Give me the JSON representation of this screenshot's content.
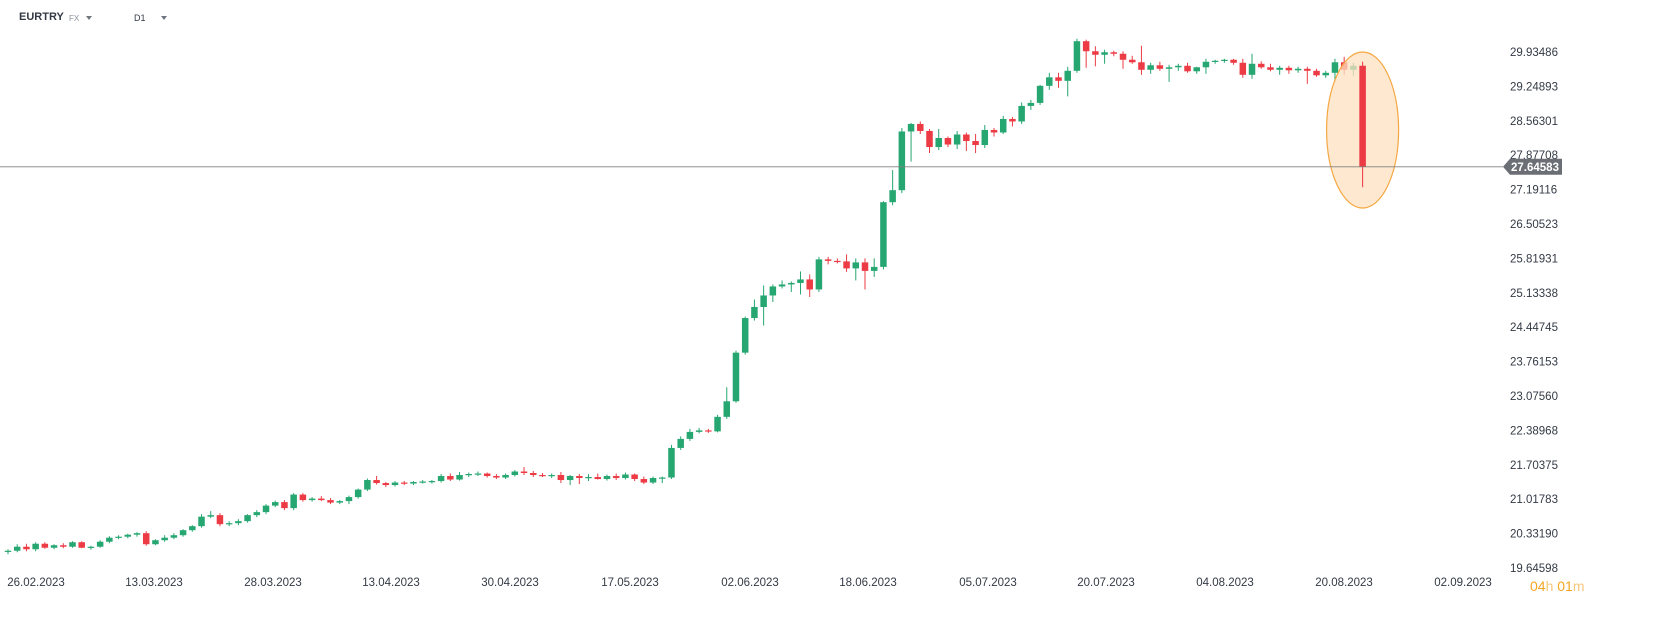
{
  "header": {
    "symbol": "EURTRY",
    "market": "FX",
    "interval": "D1"
  },
  "timer": {
    "hours": "04",
    "hours_unit": "h",
    "minutes": "01",
    "minutes_unit": "m"
  },
  "colors": {
    "up": "#26a671",
    "down": "#ec3b45",
    "line": "#808080",
    "price_tag_bg": "#6b6f75",
    "highlight_fill": "#fde2c0",
    "highlight_stroke": "#f5a742"
  },
  "chart_data": {
    "type": "candlestick",
    "symbol": "EURTRY",
    "timeframe": "D1",
    "ylim": [
      19.64598,
      30.6
    ],
    "y_ticks": [
      "29.93486",
      "29.24893",
      "28.56301",
      "27.87708",
      "27.19116",
      "26.50523",
      "25.81931",
      "25.13338",
      "24.44745",
      "23.76153",
      "23.07560",
      "22.38968",
      "21.70375",
      "21.01783",
      "20.33190",
      "19.64598"
    ],
    "x_ticks": [
      "26.02.2023",
      "13.03.2023",
      "28.03.2023",
      "13.04.2023",
      "30.04.2023",
      "17.05.2023",
      "02.06.2023",
      "18.06.2023",
      "05.07.2023",
      "20.07.2023",
      "04.08.2023",
      "20.08.2023",
      "02.09.2023"
    ],
    "current_price": "27.64583",
    "current_price_value": 27.64583,
    "candles": [
      {
        "o": 19.98,
        "h": 20.02,
        "l": 19.92,
        "c": 19.99
      },
      {
        "o": 19.99,
        "h": 20.12,
        "l": 19.96,
        "c": 20.07
      },
      {
        "o": 20.07,
        "h": 20.13,
        "l": 19.98,
        "c": 20.02
      },
      {
        "o": 20.02,
        "h": 20.16,
        "l": 19.98,
        "c": 20.13
      },
      {
        "o": 20.13,
        "h": 20.16,
        "l": 20.03,
        "c": 20.05
      },
      {
        "o": 20.05,
        "h": 20.12,
        "l": 20.02,
        "c": 20.1
      },
      {
        "o": 20.1,
        "h": 20.14,
        "l": 20.04,
        "c": 20.07
      },
      {
        "o": 20.07,
        "h": 20.18,
        "l": 20.05,
        "c": 20.16
      },
      {
        "o": 20.16,
        "h": 20.18,
        "l": 20.04,
        "c": 20.05
      },
      {
        "o": 20.05,
        "h": 20.09,
        "l": 20.01,
        "c": 20.07
      },
      {
        "o": 20.07,
        "h": 20.2,
        "l": 20.05,
        "c": 20.17
      },
      {
        "o": 20.17,
        "h": 20.28,
        "l": 20.14,
        "c": 20.25
      },
      {
        "o": 20.25,
        "h": 20.3,
        "l": 20.22,
        "c": 20.27
      },
      {
        "o": 20.27,
        "h": 20.33,
        "l": 20.24,
        "c": 20.31
      },
      {
        "o": 20.31,
        "h": 20.36,
        "l": 20.27,
        "c": 20.34
      },
      {
        "o": 20.34,
        "h": 20.38,
        "l": 20.09,
        "c": 20.12
      },
      {
        "o": 20.12,
        "h": 20.22,
        "l": 20.1,
        "c": 20.2
      },
      {
        "o": 20.2,
        "h": 20.3,
        "l": 20.17,
        "c": 20.25
      },
      {
        "o": 20.25,
        "h": 20.34,
        "l": 20.22,
        "c": 20.3
      },
      {
        "o": 20.3,
        "h": 20.42,
        "l": 20.27,
        "c": 20.4
      },
      {
        "o": 20.4,
        "h": 20.5,
        "l": 20.37,
        "c": 20.48
      },
      {
        "o": 20.48,
        "h": 20.72,
        "l": 20.45,
        "c": 20.67
      },
      {
        "o": 20.67,
        "h": 20.78,
        "l": 20.64,
        "c": 20.7
      },
      {
        "o": 20.7,
        "h": 20.74,
        "l": 20.48,
        "c": 20.52
      },
      {
        "o": 20.52,
        "h": 20.58,
        "l": 20.48,
        "c": 20.54
      },
      {
        "o": 20.54,
        "h": 20.62,
        "l": 20.5,
        "c": 20.58
      },
      {
        "o": 20.58,
        "h": 20.72,
        "l": 20.55,
        "c": 20.7
      },
      {
        "o": 20.7,
        "h": 20.8,
        "l": 20.66,
        "c": 20.76
      },
      {
        "o": 20.76,
        "h": 20.92,
        "l": 20.72,
        "c": 20.89
      },
      {
        "o": 20.89,
        "h": 20.99,
        "l": 20.86,
        "c": 20.96
      },
      {
        "o": 20.96,
        "h": 21.0,
        "l": 20.8,
        "c": 20.84
      },
      {
        "o": 20.84,
        "h": 21.14,
        "l": 20.8,
        "c": 21.11
      },
      {
        "o": 21.11,
        "h": 21.14,
        "l": 20.97,
        "c": 21.0
      },
      {
        "o": 21.0,
        "h": 21.06,
        "l": 20.97,
        "c": 21.03
      },
      {
        "o": 21.03,
        "h": 21.08,
        "l": 20.98,
        "c": 21.0
      },
      {
        "o": 21.0,
        "h": 21.04,
        "l": 20.92,
        "c": 20.95
      },
      {
        "o": 20.95,
        "h": 21.0,
        "l": 20.92,
        "c": 20.98
      },
      {
        "o": 20.98,
        "h": 21.09,
        "l": 20.92,
        "c": 21.06
      },
      {
        "o": 21.06,
        "h": 21.23,
        "l": 21.03,
        "c": 21.21
      },
      {
        "o": 21.21,
        "h": 21.43,
        "l": 21.18,
        "c": 21.4
      },
      {
        "o": 21.4,
        "h": 21.48,
        "l": 21.31,
        "c": 21.34
      },
      {
        "o": 21.34,
        "h": 21.36,
        "l": 21.26,
        "c": 21.3
      },
      {
        "o": 21.3,
        "h": 21.38,
        "l": 21.27,
        "c": 21.35
      },
      {
        "o": 21.35,
        "h": 21.38,
        "l": 21.3,
        "c": 21.33
      },
      {
        "o": 21.33,
        "h": 21.38,
        "l": 21.3,
        "c": 21.36
      },
      {
        "o": 21.36,
        "h": 21.4,
        "l": 21.33,
        "c": 21.37
      },
      {
        "o": 21.37,
        "h": 21.4,
        "l": 21.33,
        "c": 21.38
      },
      {
        "o": 21.38,
        "h": 21.52,
        "l": 21.35,
        "c": 21.48
      },
      {
        "o": 21.48,
        "h": 21.53,
        "l": 21.38,
        "c": 21.41
      },
      {
        "o": 21.41,
        "h": 21.56,
        "l": 21.39,
        "c": 21.5
      },
      {
        "o": 21.5,
        "h": 21.55,
        "l": 21.46,
        "c": 21.52
      },
      {
        "o": 21.52,
        "h": 21.57,
        "l": 21.48,
        "c": 21.53
      },
      {
        "o": 21.53,
        "h": 21.55,
        "l": 21.45,
        "c": 21.48
      },
      {
        "o": 21.48,
        "h": 21.52,
        "l": 21.42,
        "c": 21.45
      },
      {
        "o": 21.45,
        "h": 21.53,
        "l": 21.42,
        "c": 21.5
      },
      {
        "o": 21.5,
        "h": 21.6,
        "l": 21.47,
        "c": 21.57
      },
      {
        "o": 21.57,
        "h": 21.66,
        "l": 21.5,
        "c": 21.54
      },
      {
        "o": 21.54,
        "h": 21.58,
        "l": 21.46,
        "c": 21.5
      },
      {
        "o": 21.5,
        "h": 21.54,
        "l": 21.46,
        "c": 21.48
      },
      {
        "o": 21.48,
        "h": 21.53,
        "l": 21.44,
        "c": 21.5
      },
      {
        "o": 21.5,
        "h": 21.56,
        "l": 21.34,
        "c": 21.4
      },
      {
        "o": 21.4,
        "h": 21.5,
        "l": 21.3,
        "c": 21.48
      },
      {
        "o": 21.48,
        "h": 21.52,
        "l": 21.32,
        "c": 21.44
      },
      {
        "o": 21.44,
        "h": 21.52,
        "l": 21.38,
        "c": 21.46
      },
      {
        "o": 21.46,
        "h": 21.53,
        "l": 21.41,
        "c": 21.42
      },
      {
        "o": 21.42,
        "h": 21.51,
        "l": 21.39,
        "c": 21.48
      },
      {
        "o": 21.48,
        "h": 21.53,
        "l": 21.4,
        "c": 21.44
      },
      {
        "o": 21.44,
        "h": 21.55,
        "l": 21.41,
        "c": 21.51
      },
      {
        "o": 21.51,
        "h": 21.53,
        "l": 21.38,
        "c": 21.42
      },
      {
        "o": 21.42,
        "h": 21.47,
        "l": 21.32,
        "c": 21.35
      },
      {
        "o": 21.35,
        "h": 21.47,
        "l": 21.32,
        "c": 21.44
      },
      {
        "o": 21.44,
        "h": 21.47,
        "l": 21.34,
        "c": 21.45
      },
      {
        "o": 21.45,
        "h": 22.1,
        "l": 21.42,
        "c": 22.04
      },
      {
        "o": 22.04,
        "h": 22.27,
        "l": 22.0,
        "c": 22.22
      },
      {
        "o": 22.22,
        "h": 22.42,
        "l": 22.18,
        "c": 22.36
      },
      {
        "o": 22.36,
        "h": 22.44,
        "l": 22.33,
        "c": 22.39
      },
      {
        "o": 22.39,
        "h": 22.42,
        "l": 22.34,
        "c": 22.37
      },
      {
        "o": 22.37,
        "h": 22.7,
        "l": 22.35,
        "c": 22.66
      },
      {
        "o": 22.66,
        "h": 23.25,
        "l": 22.62,
        "c": 22.97
      },
      {
        "o": 22.97,
        "h": 23.98,
        "l": 22.94,
        "c": 23.94
      },
      {
        "o": 23.94,
        "h": 24.66,
        "l": 23.9,
        "c": 24.63
      },
      {
        "o": 24.63,
        "h": 25.0,
        "l": 24.58,
        "c": 24.85
      },
      {
        "o": 24.85,
        "h": 25.28,
        "l": 24.48,
        "c": 25.08
      },
      {
        "o": 25.08,
        "h": 25.3,
        "l": 24.95,
        "c": 25.26
      },
      {
        "o": 25.26,
        "h": 25.38,
        "l": 25.22,
        "c": 25.3
      },
      {
        "o": 25.3,
        "h": 25.36,
        "l": 25.15,
        "c": 25.33
      },
      {
        "o": 25.33,
        "h": 25.56,
        "l": 25.1,
        "c": 25.4
      },
      {
        "o": 25.4,
        "h": 25.5,
        "l": 25.05,
        "c": 25.2
      },
      {
        "o": 25.2,
        "h": 25.85,
        "l": 25.15,
        "c": 25.8
      },
      {
        "o": 25.8,
        "h": 25.85,
        "l": 25.7,
        "c": 25.77
      },
      {
        "o": 25.77,
        "h": 25.82,
        "l": 25.72,
        "c": 25.76
      },
      {
        "o": 25.76,
        "h": 25.9,
        "l": 25.55,
        "c": 25.62
      },
      {
        "o": 25.62,
        "h": 25.82,
        "l": 25.38,
        "c": 25.74
      },
      {
        "o": 25.74,
        "h": 25.82,
        "l": 25.2,
        "c": 25.57
      },
      {
        "o": 25.57,
        "h": 25.82,
        "l": 25.45,
        "c": 25.65
      },
      {
        "o": 25.65,
        "h": 26.96,
        "l": 25.6,
        "c": 26.94
      },
      {
        "o": 26.94,
        "h": 27.58,
        "l": 26.88,
        "c": 27.18
      },
      {
        "o": 27.18,
        "h": 28.42,
        "l": 27.12,
        "c": 28.35
      },
      {
        "o": 28.35,
        "h": 28.52,
        "l": 27.75,
        "c": 28.5
      },
      {
        "o": 28.5,
        "h": 28.55,
        "l": 28.3,
        "c": 28.36
      },
      {
        "o": 28.36,
        "h": 28.4,
        "l": 27.92,
        "c": 28.04
      },
      {
        "o": 28.04,
        "h": 28.4,
        "l": 27.98,
        "c": 28.22
      },
      {
        "o": 28.22,
        "h": 28.25,
        "l": 28.04,
        "c": 28.09
      },
      {
        "o": 28.09,
        "h": 28.36,
        "l": 28.0,
        "c": 28.29
      },
      {
        "o": 28.29,
        "h": 28.33,
        "l": 27.96,
        "c": 28.16
      },
      {
        "o": 28.16,
        "h": 28.3,
        "l": 27.92,
        "c": 28.08
      },
      {
        "o": 28.08,
        "h": 28.48,
        "l": 28.02,
        "c": 28.38
      },
      {
        "o": 28.38,
        "h": 28.42,
        "l": 28.25,
        "c": 28.33
      },
      {
        "o": 28.33,
        "h": 28.66,
        "l": 28.3,
        "c": 28.6
      },
      {
        "o": 28.6,
        "h": 28.64,
        "l": 28.45,
        "c": 28.55
      },
      {
        "o": 28.55,
        "h": 28.93,
        "l": 28.5,
        "c": 28.86
      },
      {
        "o": 28.86,
        "h": 28.98,
        "l": 28.78,
        "c": 28.92
      },
      {
        "o": 28.92,
        "h": 29.28,
        "l": 28.88,
        "c": 29.26
      },
      {
        "o": 29.26,
        "h": 29.52,
        "l": 29.18,
        "c": 29.43
      },
      {
        "o": 29.43,
        "h": 29.52,
        "l": 29.22,
        "c": 29.36
      },
      {
        "o": 29.36,
        "h": 29.64,
        "l": 29.05,
        "c": 29.56
      },
      {
        "o": 29.56,
        "h": 30.2,
        "l": 29.52,
        "c": 30.15
      },
      {
        "o": 30.15,
        "h": 30.18,
        "l": 29.62,
        "c": 29.95
      },
      {
        "o": 29.95,
        "h": 30.05,
        "l": 29.65,
        "c": 29.88
      },
      {
        "o": 29.88,
        "h": 29.98,
        "l": 29.7,
        "c": 29.93
      },
      {
        "o": 29.93,
        "h": 29.96,
        "l": 29.85,
        "c": 29.9
      },
      {
        "o": 29.9,
        "h": 29.95,
        "l": 29.6,
        "c": 29.78
      },
      {
        "o": 29.78,
        "h": 29.86,
        "l": 29.7,
        "c": 29.73
      },
      {
        "o": 29.73,
        "h": 30.06,
        "l": 29.48,
        "c": 29.58
      },
      {
        "o": 29.58,
        "h": 29.72,
        "l": 29.5,
        "c": 29.67
      },
      {
        "o": 29.67,
        "h": 29.74,
        "l": 29.56,
        "c": 29.6
      },
      {
        "o": 29.6,
        "h": 29.68,
        "l": 29.34,
        "c": 29.63
      },
      {
        "o": 29.63,
        "h": 29.7,
        "l": 29.56,
        "c": 29.66
      },
      {
        "o": 29.66,
        "h": 29.72,
        "l": 29.52,
        "c": 29.55
      },
      {
        "o": 29.55,
        "h": 29.64,
        "l": 29.5,
        "c": 29.63
      },
      {
        "o": 29.63,
        "h": 29.8,
        "l": 29.5,
        "c": 29.74
      },
      {
        "o": 29.74,
        "h": 29.78,
        "l": 29.7,
        "c": 29.76
      },
      {
        "o": 29.76,
        "h": 29.8,
        "l": 29.72,
        "c": 29.78
      },
      {
        "o": 29.78,
        "h": 29.8,
        "l": 29.68,
        "c": 29.72
      },
      {
        "o": 29.72,
        "h": 29.8,
        "l": 29.42,
        "c": 29.48
      },
      {
        "o": 29.48,
        "h": 29.9,
        "l": 29.4,
        "c": 29.7
      },
      {
        "o": 29.7,
        "h": 29.75,
        "l": 29.6,
        "c": 29.63
      },
      {
        "o": 29.63,
        "h": 29.7,
        "l": 29.55,
        "c": 29.58
      },
      {
        "o": 29.58,
        "h": 29.66,
        "l": 29.48,
        "c": 29.62
      },
      {
        "o": 29.62,
        "h": 29.66,
        "l": 29.5,
        "c": 29.57
      },
      {
        "o": 29.57,
        "h": 29.64,
        "l": 29.52,
        "c": 29.6
      },
      {
        "o": 29.6,
        "h": 29.64,
        "l": 29.3,
        "c": 29.56
      },
      {
        "o": 29.56,
        "h": 29.6,
        "l": 29.44,
        "c": 29.47
      },
      {
        "o": 29.47,
        "h": 29.56,
        "l": 29.42,
        "c": 29.52
      },
      {
        "o": 29.52,
        "h": 29.8,
        "l": 29.34,
        "c": 29.73
      },
      {
        "o": 29.73,
        "h": 29.84,
        "l": 29.48,
        "c": 29.58
      },
      {
        "o": 29.58,
        "h": 29.72,
        "l": 29.46,
        "c": 29.66
      },
      {
        "o": 29.66,
        "h": 29.74,
        "l": 27.24,
        "c": 27.64583
      }
    ]
  }
}
